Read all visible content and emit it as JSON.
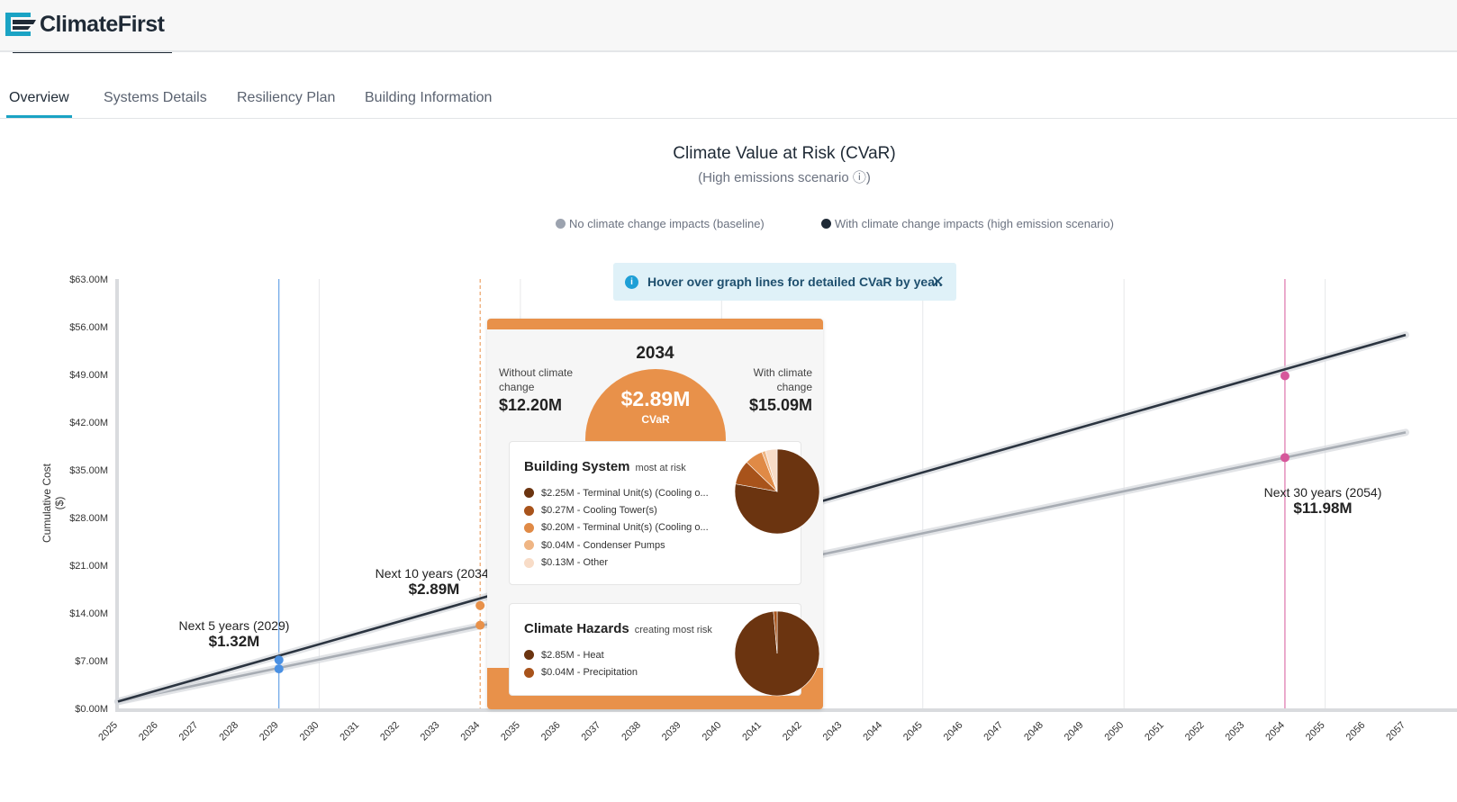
{
  "app": {
    "name": "ClimateFirst"
  },
  "tabs": [
    {
      "label": "Overview",
      "active": true
    },
    {
      "label": "Systems Details",
      "active": false
    },
    {
      "label": "Resiliency Plan",
      "active": false
    },
    {
      "label": "Building Information",
      "active": false
    }
  ],
  "chart": {
    "title": "Climate Value at Risk (CVaR)",
    "subtitle": "(High emissions scenario ⓘ)",
    "legend": [
      {
        "label": "No climate change impacts (baseline)",
        "color": "#9ca3af"
      },
      {
        "label": "With climate change impacts (high emission scenario)",
        "color": "#1f2a36"
      }
    ],
    "hover_tip": "Hover over graph lines for detailed CVaR by year.",
    "ylabel": "Cumulative Cost ($)",
    "annotations": [
      {
        "label": "Next 5 years (2029)",
        "value": "$1.32M"
      },
      {
        "label": "Next 10 years (2034)",
        "value": "$2.89M"
      },
      {
        "label": "Next 30 years (2054)",
        "value": "$11.98M"
      }
    ]
  },
  "chart_data": {
    "type": "line",
    "title": "Climate Value at Risk (CVaR)",
    "subtitle": "(High emissions scenario)",
    "ylabel": "Cumulative Cost ($)",
    "xlabel": "",
    "x": [
      2025,
      2026,
      2027,
      2028,
      2029,
      2030,
      2031,
      2032,
      2033,
      2034,
      2035,
      2036,
      2037,
      2038,
      2039,
      2040,
      2041,
      2042,
      2043,
      2044,
      2045,
      2046,
      2047,
      2048,
      2049,
      2050,
      2051,
      2052,
      2053,
      2054,
      2055,
      2056,
      2057
    ],
    "xlim": [
      2025,
      2057
    ],
    "ylim": [
      0,
      63
    ],
    "yticks": [
      "$0.00M",
      "$7.00M",
      "$14.00M",
      "$21.00M",
      "$28.00M",
      "$35.00M",
      "$42.00M",
      "$49.00M",
      "$56.00M",
      "$63.00M"
    ],
    "grid": true,
    "legend": "top",
    "series": [
      {
        "name": "No climate change impacts (baseline)",
        "color": "#a7acb3",
        "start": [
          2025,
          1.0
        ],
        "end": [
          2057,
          40.5
        ]
      },
      {
        "name": "With climate change impacts (high emission scenario)",
        "color": "#2b3440",
        "start": [
          2025,
          1.0
        ],
        "end": [
          2057,
          54.8
        ]
      }
    ],
    "markers": [
      {
        "year": 2029,
        "color": "#4a90e2",
        "with": 7.1,
        "without": 5.8,
        "line_style": "solid"
      },
      {
        "year": 2034,
        "color": "#e8914a",
        "with": 15.09,
        "without": 12.2,
        "line_style": "dashed"
      },
      {
        "year": 2054,
        "color": "#d6589b",
        "with": 48.8,
        "without": 36.8,
        "line_style": "solid"
      }
    ]
  },
  "tooltip": {
    "year": "2034",
    "without_label": "Without climate change",
    "without_value": "$12.20M",
    "with_label": "With climate change",
    "with_value": "$15.09M",
    "cvar_value": "$2.89M",
    "cvar_label": "CVaR",
    "building_system": {
      "title": "Building System",
      "subtitle": "most at risk",
      "items": [
        {
          "label": "$2.25M - Terminal Unit(s) (Cooling o...",
          "value": 2.25,
          "color": "#6b3410"
        },
        {
          "label": "$0.27M - Cooling Tower(s)",
          "value": 0.27,
          "color": "#a8531b"
        },
        {
          "label": "$0.20M - Terminal Unit(s) (Cooling o...",
          "value": 0.2,
          "color": "#e08a46"
        },
        {
          "label": "$0.04M - Condenser Pumps",
          "value": 0.04,
          "color": "#efb584"
        },
        {
          "label": "$0.13M - Other",
          "value": 0.13,
          "color": "#f8dcc7"
        }
      ]
    },
    "climate_hazards": {
      "title": "Climate Hazards",
      "subtitle": "creating most risk",
      "items": [
        {
          "label": "$2.85M - Heat",
          "value": 2.85,
          "color": "#6b3410"
        },
        {
          "label": "$0.04M - Precipitation",
          "value": 0.04,
          "color": "#a8531b"
        }
      ]
    }
  }
}
